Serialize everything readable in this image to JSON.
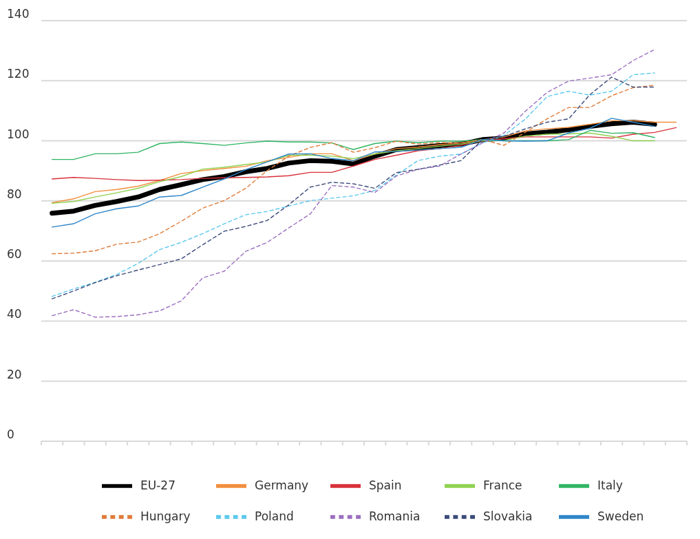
{
  "chart_data": {
    "type": "line",
    "categories": [
      null,
      null,
      null,
      null,
      null,
      null,
      null,
      null,
      null,
      null,
      null,
      null,
      null,
      null,
      null,
      null,
      null,
      null,
      null,
      null,
      null,
      null,
      null,
      null,
      null,
      null,
      null,
      null,
      null,
      null
    ],
    "ylim": [
      0,
      140
    ],
    "yticks": [
      0,
      20,
      40,
      60,
      80,
      100,
      120,
      140
    ],
    "grid": "y",
    "legend": "bottom",
    "tick_labels": "y",
    "marker": "none",
    "series": [
      {
        "name": "EU-27",
        "color": "#000000",
        "line_style": "solid",
        "values": [
          75.9,
          76.6,
          78.5,
          79.8,
          81.3,
          83.8,
          85.4,
          87.1,
          88.1,
          89.7,
          90.8,
          92.6,
          93.4,
          93.2,
          92.3,
          94.9,
          97.1,
          97.7,
          98.4,
          98.9,
          100.4,
          100.9,
          102.3,
          102.9,
          103.7,
          104.8,
          105.7,
          106.2,
          105.5,
          null
        ]
      },
      {
        "name": "Germany",
        "color": "#f28e3c",
        "line_style": "solid",
        "values": [
          79.4,
          80.7,
          83.1,
          83.8,
          84.9,
          86.8,
          89.1,
          90.1,
          90.8,
          91.5,
          93.4,
          94.5,
          95.7,
          95.7,
          93.4,
          95.6,
          97.4,
          97.9,
          98.7,
          99.3,
          100.4,
          101.3,
          103.3,
          104,
          104.5,
          105.5,
          106.7,
          106.7,
          106.2,
          106.2
        ]
      },
      {
        "name": "Spain",
        "color": "#d9303a",
        "line_style": "solid",
        "values": [
          87.3,
          87.8,
          87.5,
          87.1,
          86.8,
          86.9,
          87.1,
          87.5,
          87.7,
          87.8,
          88,
          88.4,
          89.5,
          89.5,
          91.6,
          93.8,
          95.2,
          96.7,
          97.4,
          98.5,
          100,
          100.7,
          101.3,
          101.3,
          101.3,
          101.3,
          100.9,
          102.2,
          102.8,
          104.4
        ]
      },
      {
        "name": "France",
        "color": "#8fd14f",
        "line_style": "solid",
        "values": [
          79.2,
          79.8,
          81.3,
          82.7,
          84.2,
          86.4,
          88.1,
          90.6,
          91.2,
          92.1,
          93,
          95.2,
          95.2,
          94.9,
          94.1,
          95.6,
          96.7,
          97.4,
          98.2,
          98.9,
          100,
          100.1,
          101.6,
          102.2,
          102.3,
          102.6,
          101.5,
          100,
          100,
          null
        ]
      },
      {
        "name": "Italy",
        "color": "#2fb563",
        "line_style": "solid",
        "values": [
          93.8,
          93.8,
          95.7,
          95.7,
          96.2,
          99.1,
          99.6,
          99.1,
          98.5,
          99.3,
          99.9,
          99.6,
          99.6,
          99.3,
          97.1,
          99.1,
          99.9,
          99.4,
          99.9,
          99.9,
          100.4,
          100,
          100,
          100,
          100.4,
          103.5,
          102.5,
          102.7,
          101.1,
          null
        ]
      },
      {
        "name": "Hungary",
        "color": "#e07b39",
        "line_style": "dashed",
        "values": [
          62.4,
          62.6,
          63.4,
          65.6,
          66.3,
          69.1,
          73.2,
          77.6,
          80.1,
          84.2,
          90.1,
          94.9,
          97.8,
          99.4,
          96.2,
          97.7,
          99.9,
          98.9,
          99.4,
          99.3,
          100.4,
          98.5,
          102.9,
          107.3,
          111.1,
          111.1,
          115,
          117.7,
          118.5,
          null
        ]
      },
      {
        "name": "Poland",
        "color": "#5bc8ee",
        "line_style": "dashed",
        "values": [
          48.2,
          50.7,
          52.9,
          55.5,
          59.2,
          63.8,
          66.2,
          69.1,
          72.4,
          75.4,
          76.5,
          78.3,
          80.1,
          80.9,
          81.7,
          83.5,
          88.6,
          93.4,
          94.9,
          95.6,
          99.3,
          101.8,
          107.3,
          114.7,
          116.5,
          115.2,
          116.5,
          122,
          122.6,
          null
        ]
      },
      {
        "name": "Romania",
        "color": "#9b6fc0",
        "line_style": "dashed",
        "values": [
          41.8,
          43.8,
          41.3,
          41.5,
          42.1,
          43.4,
          46.7,
          54.4,
          56.6,
          63.2,
          66.2,
          71,
          75.7,
          85.1,
          84.6,
          82.8,
          88.3,
          90.5,
          91.6,
          95.6,
          99.3,
          102.6,
          109.9,
          116.1,
          119.9,
          120.9,
          122,
          126.7,
          130.4,
          null
        ]
      },
      {
        "name": "Slovakia",
        "color": "#3b4a7a",
        "line_style": "dashed",
        "values": [
          47.4,
          50,
          52.8,
          55.1,
          57,
          58.8,
          60.7,
          65.4,
          69.9,
          71.5,
          73.5,
          78.7,
          84.6,
          86.2,
          85.7,
          84.2,
          89.4,
          90.5,
          91.9,
          93.4,
          100.4,
          101.5,
          104,
          106.2,
          107.3,
          115.4,
          121.2,
          117.9,
          117.9,
          null
        ]
      },
      {
        "name": "Sweden",
        "color": "#2e86c8",
        "line_style": "solid",
        "values": [
          71.3,
          72.4,
          75.7,
          77.4,
          78.3,
          81.3,
          81.8,
          84.6,
          87.3,
          90.4,
          93,
          95.6,
          95.7,
          94.1,
          93.4,
          96.3,
          96.5,
          96.9,
          97.4,
          97.8,
          100.4,
          100,
          99.9,
          100,
          102.6,
          104.2,
          107.5,
          106.2,
          104.8,
          null
        ]
      }
    ]
  }
}
